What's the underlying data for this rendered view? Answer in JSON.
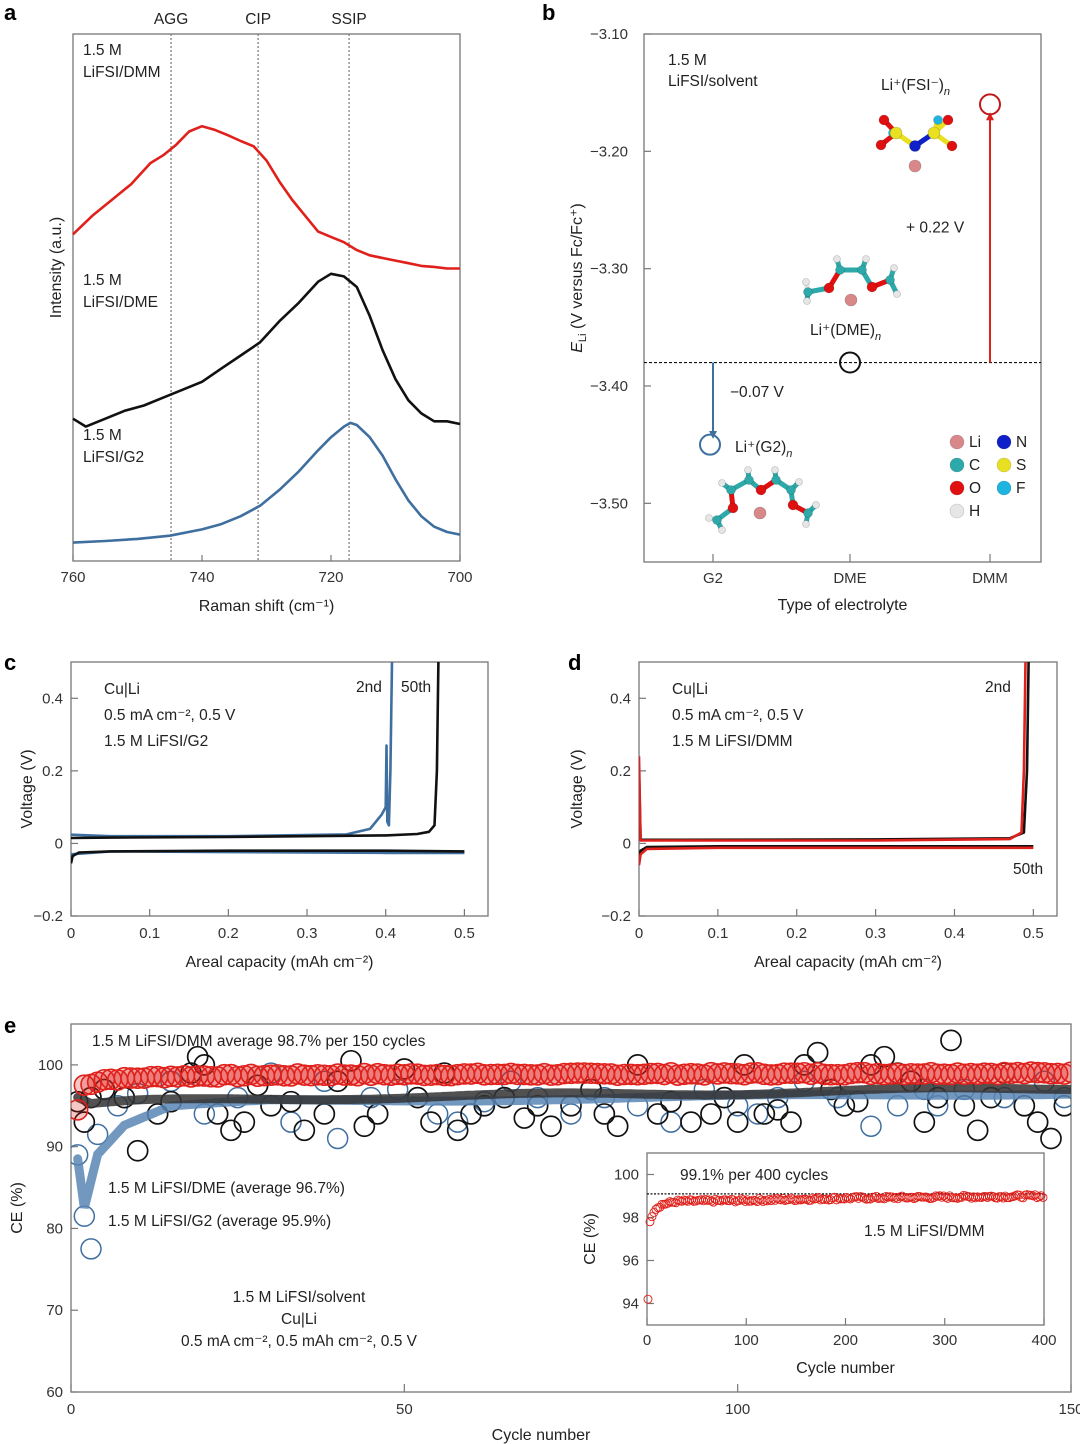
{
  "figure": {
    "panels": [
      "a",
      "b",
      "c",
      "d",
      "e"
    ]
  },
  "chart_data": [
    {
      "id": "a",
      "type": "line",
      "title": "",
      "xlabel": "Raman shift (cm⁻¹)",
      "ylabel": "Intensity (a.u.)",
      "xlim": [
        760,
        700
      ],
      "x_ticks": [
        "760",
        "740",
        "720",
        "700"
      ],
      "reference_lines": [
        {
          "label": "AGG",
          "x": 744.8
        },
        {
          "label": "CIP",
          "x": 731.3
        },
        {
          "label": "SSIP",
          "x": 717.2
        }
      ],
      "series": [
        {
          "name": "1.5 M LiFSI/DMM",
          "label_lines": [
            "1.5 M",
            "LiFSI/DMM"
          ],
          "color": "#e0201b",
          "x": [
            760,
            757,
            754,
            751,
            748,
            746,
            744,
            742,
            740,
            738,
            736,
            734,
            732,
            730,
            728,
            726,
            724,
            722,
            720,
            718,
            716,
            714,
            712,
            710,
            708,
            706,
            704,
            702,
            700
          ],
          "y": [
            0.62,
            0.655,
            0.685,
            0.715,
            0.755,
            0.77,
            0.79,
            0.815,
            0.825,
            0.818,
            0.808,
            0.797,
            0.787,
            0.76,
            0.72,
            0.685,
            0.655,
            0.625,
            0.615,
            0.605,
            0.59,
            0.58,
            0.575,
            0.57,
            0.565,
            0.56,
            0.558,
            0.555,
            0.555
          ]
        },
        {
          "name": "1.5 M LiFSI/DME",
          "label_lines": [
            "1.5 M",
            "LiFSI/DME"
          ],
          "color": "#111111",
          "x": [
            760,
            758,
            755,
            752,
            749,
            746,
            743,
            740,
            737,
            734,
            731,
            728,
            725,
            722,
            720,
            718,
            716,
            714,
            712,
            710,
            708,
            706,
            704,
            702,
            700
          ],
          "y": [
            0.27,
            0.255,
            0.27,
            0.285,
            0.295,
            0.31,
            0.325,
            0.34,
            0.365,
            0.39,
            0.415,
            0.455,
            0.49,
            0.53,
            0.545,
            0.54,
            0.52,
            0.465,
            0.4,
            0.345,
            0.305,
            0.28,
            0.265,
            0.265,
            0.26
          ]
        },
        {
          "name": "1.5 M LiFSI/G2",
          "label_lines": [
            "1.5 M",
            "LiFSI/G2"
          ],
          "color": "#3f6f9f",
          "x": [
            760,
            755,
            750,
            745,
            740,
            737,
            734,
            731,
            728,
            725,
            722,
            720,
            718,
            717,
            716,
            714,
            712,
            710,
            708,
            706,
            704,
            702,
            700
          ],
          "y": [
            0.035,
            0.038,
            0.042,
            0.048,
            0.06,
            0.07,
            0.085,
            0.105,
            0.135,
            0.17,
            0.21,
            0.235,
            0.255,
            0.262,
            0.258,
            0.235,
            0.2,
            0.155,
            0.115,
            0.085,
            0.065,
            0.055,
            0.05
          ]
        }
      ]
    },
    {
      "id": "b",
      "type": "scatter",
      "title": "",
      "xlabel": "Type of electrolyte",
      "ylabel_main": "E",
      "ylabel_sub": "Li",
      "ylabel_rest": " (V versus Fc/Fc⁺)",
      "ylim": [
        -3.55,
        -3.1
      ],
      "y_ticks": [
        "−3.10",
        "−3.20",
        "−3.30",
        "−3.40",
        "−3.50"
      ],
      "y_tick_values": [
        -3.1,
        -3.2,
        -3.3,
        -3.4,
        -3.5
      ],
      "categories": [
        "G2",
        "DME",
        "DMM"
      ],
      "values": [
        -3.45,
        -3.38,
        -3.16
      ],
      "colors": [
        "#3f6f9f",
        "#111111",
        "#c0191a"
      ],
      "species_labels": [
        "Li⁺(G2)",
        "Li⁺(DME)",
        "Li⁺(FSI⁻)"
      ],
      "species_subscript": "n",
      "reference_level": -3.38,
      "annotations": [
        {
          "text": "−0.07 V",
          "from": -3.38,
          "to": -3.44,
          "category": "G2"
        },
        {
          "text": "+ 0.22 V",
          "from": -3.38,
          "to": -3.165,
          "category": "DMM"
        }
      ],
      "inset_text": [
        "1.5 M",
        "LiFSI/solvent"
      ],
      "atom_legend": [
        {
          "symbol": "Li",
          "color": "#d9888a"
        },
        {
          "symbol": "C",
          "color": "#2ea9aa"
        },
        {
          "symbol": "O",
          "color": "#e01010"
        },
        {
          "symbol": "H",
          "color": "#e6e6e6"
        },
        {
          "symbol": "N",
          "color": "#1020c8"
        },
        {
          "symbol": "S",
          "color": "#e8e020"
        },
        {
          "symbol": "F",
          "color": "#1eb4e0"
        }
      ]
    },
    {
      "id": "c",
      "type": "line",
      "xlabel": "Areal capacity (mAh cm⁻²)",
      "ylabel": "Voltage (V)",
      "xlim": [
        0,
        0.53
      ],
      "ylim": [
        -0.2,
        0.5
      ],
      "x_ticks": [
        "0",
        "0.1",
        "0.2",
        "0.3",
        "0.4",
        "0.5"
      ],
      "y_ticks": [
        "−0.2",
        "0",
        "0.2",
        "0.4"
      ],
      "annotation_lines": [
        "Cu|Li",
        "0.5 mA cm⁻², 0.5 V",
        "1.5 M LiFSI/G2"
      ],
      "curve_labels": [
        "2nd",
        "50th"
      ],
      "series": [
        {
          "name": "2nd",
          "color": "#111111",
          "x": [
            0,
            0.002,
            0.01,
            0.05,
            0.2,
            0.4,
            0.5
          ],
          "y": [
            -0.055,
            -0.035,
            -0.025,
            -0.022,
            -0.02,
            -0.02,
            -0.022
          ],
          "x2": [
            0,
            0.05,
            0.2,
            0.4,
            0.44,
            0.455,
            0.462,
            0.465,
            0.467
          ],
          "y2": [
            0.015,
            0.016,
            0.018,
            0.022,
            0.026,
            0.032,
            0.05,
            0.2,
            0.5
          ]
        },
        {
          "name": "50th",
          "color": "#3f6f9f",
          "x": [
            0,
            0.05,
            0.2,
            0.4,
            0.5
          ],
          "y": [
            -0.03,
            -0.022,
            -0.024,
            -0.026,
            -0.026
          ],
          "x2": [
            0,
            0.05,
            0.2,
            0.35,
            0.38,
            0.395,
            0.4,
            0.401,
            0.402,
            0.404,
            0.406,
            0.408
          ],
          "y2": [
            0.024,
            0.02,
            0.02,
            0.025,
            0.04,
            0.08,
            0.1,
            0.27,
            0.06,
            0.05,
            0.2,
            0.5
          ]
        }
      ]
    },
    {
      "id": "d",
      "type": "line",
      "xlabel": "Areal capacity (mAh cm⁻²)",
      "ylabel": "Voltage (V)",
      "xlim": [
        0,
        0.53
      ],
      "ylim": [
        -0.2,
        0.5
      ],
      "x_ticks": [
        "0",
        "0.1",
        "0.2",
        "0.3",
        "0.4",
        "0.5"
      ],
      "y_ticks": [
        "−0.2",
        "0",
        "0.2",
        "0.4"
      ],
      "annotation_lines": [
        "Cu|Li",
        "0.5 mA cm⁻², 0.5 V",
        "1.5 M LiFSI/DMM"
      ],
      "curve_labels": [
        "2nd",
        "50th"
      ],
      "series": [
        {
          "name": "2nd",
          "color": "#e0201b",
          "x": [
            0,
            0.002,
            0.01,
            0.1,
            0.3,
            0.5
          ],
          "y": [
            -0.06,
            -0.03,
            -0.015,
            -0.012,
            -0.012,
            -0.012
          ],
          "x2": [
            0,
            0.0005,
            0.002,
            0.05,
            0.3,
            0.47,
            0.485,
            0.488,
            0.49
          ],
          "y2": [
            0.24,
            0.18,
            0.008,
            0.008,
            0.008,
            0.012,
            0.03,
            0.2,
            0.5
          ]
        },
        {
          "name": "50th",
          "color": "#111111",
          "x": [
            0,
            0.002,
            0.01,
            0.1,
            0.3,
            0.5
          ],
          "y": [
            -0.04,
            -0.02,
            -0.01,
            -0.008,
            -0.008,
            -0.008
          ],
          "x2": [
            0,
            0.002,
            0.05,
            0.3,
            0.47,
            0.488,
            0.492,
            0.494
          ],
          "y2": [
            0.2,
            0.01,
            0.01,
            0.011,
            0.014,
            0.03,
            0.2,
            0.5
          ]
        }
      ]
    },
    {
      "id": "e",
      "type": "scatter",
      "xlabel": "Cycle number",
      "ylabel": "CE (%)",
      "xlim": [
        0,
        150
      ],
      "ylim": [
        60,
        105
      ],
      "x_ticks": [
        "0",
        "50",
        "100",
        "150"
      ],
      "y_ticks": [
        "60",
        "70",
        "80",
        "90",
        "100"
      ],
      "annotations": [
        "1.5 M LiFSI/DMM average 98.7% per 150 cycles",
        "1.5 M LiFSI/DME (average 96.7%)",
        "1.5 M LiFSI/G2 (average 95.9%)"
      ],
      "condition_lines": [
        "1.5 M LiFSI/solvent",
        "Cu|Li",
        "0.5 mA cm⁻², 0.5 mAh cm⁻², 0.5 V"
      ],
      "series": [
        {
          "name": "1.5 M LiFSI/DMM",
          "average": 98.7,
          "color": "#e0201b",
          "trend": [
            [
              1,
              94.5
            ],
            [
              2,
              97.5
            ],
            [
              5,
              98.2
            ],
            [
              15,
              98.6
            ],
            [
              40,
              98.8
            ],
            [
              150,
              99.0
            ]
          ]
        },
        {
          "name": "1.5 M LiFSI/DME",
          "average": 96.7,
          "color": "#333333",
          "trend": [
            [
              1,
              96.0
            ],
            [
              3,
              95.2
            ],
            [
              10,
              95.5
            ],
            [
              40,
              96.0
            ],
            [
              100,
              96.6
            ],
            [
              150,
              97.2
            ]
          ]
        },
        {
          "name": "1.5 M LiFSI/G2",
          "average": 95.9,
          "color": "#5a86b5",
          "trend": [
            [
              1,
              88.5
            ],
            [
              2,
              82.5
            ],
            [
              4,
              89.0
            ],
            [
              8,
              92.5
            ],
            [
              15,
              94.8
            ],
            [
              30,
              95.6
            ],
            [
              80,
              95.9
            ],
            [
              150,
              96.6
            ]
          ]
        }
      ],
      "dme_scatter_sample": [
        [
          1,
          95.5
        ],
        [
          2,
          93.0
        ],
        [
          3,
          96
        ],
        [
          5,
          97
        ],
        [
          8,
          96
        ],
        [
          10,
          89.5
        ],
        [
          13,
          94
        ],
        [
          15,
          95.5
        ],
        [
          18,
          99
        ],
        [
          19,
          101
        ],
        [
          20,
          100
        ],
        [
          22,
          94
        ],
        [
          24,
          92
        ],
        [
          26,
          93
        ],
        [
          28,
          97.5
        ],
        [
          30,
          95
        ],
        [
          33,
          95.5
        ],
        [
          35,
          92
        ],
        [
          38,
          94
        ],
        [
          40,
          98
        ],
        [
          42,
          100.5
        ],
        [
          44,
          92.5
        ],
        [
          46,
          94
        ],
        [
          50,
          99.5
        ],
        [
          52,
          96
        ],
        [
          54,
          93
        ],
        [
          56,
          99
        ],
        [
          58,
          92
        ],
        [
          60,
          94
        ],
        [
          62,
          95
        ],
        [
          65,
          96
        ],
        [
          68,
          93.5
        ],
        [
          70,
          95
        ],
        [
          72,
          92.5
        ],
        [
          75,
          95
        ],
        [
          78,
          97
        ],
        [
          80,
          94
        ],
        [
          82,
          92.5
        ],
        [
          85,
          100
        ],
        [
          88,
          94
        ],
        [
          90,
          95.5
        ],
        [
          93,
          93
        ],
        [
          96,
          94
        ],
        [
          98,
          96
        ],
        [
          100,
          93
        ],
        [
          101,
          100
        ],
        [
          104,
          94
        ],
        [
          106,
          94.5
        ],
        [
          108,
          93
        ],
        [
          110,
          100
        ],
        [
          112,
          101.5
        ],
        [
          114,
          97
        ],
        [
          116,
          95
        ],
        [
          118,
          95.5
        ],
        [
          120,
          100
        ],
        [
          122,
          101
        ],
        [
          124,
          99
        ],
        [
          126,
          98
        ],
        [
          128,
          93
        ],
        [
          130,
          96
        ],
        [
          132,
          103
        ],
        [
          134,
          95
        ],
        [
          136,
          92
        ],
        [
          138,
          96
        ],
        [
          140,
          99
        ],
        [
          143,
          95
        ],
        [
          145,
          93
        ],
        [
          147,
          91
        ],
        [
          149,
          95
        ]
      ],
      "g2_scatter_sample": [
        [
          1,
          89
        ],
        [
          2,
          81.5
        ],
        [
          3,
          77.5
        ],
        [
          4,
          91.5
        ],
        [
          7,
          95
        ],
        [
          10,
          96.5
        ],
        [
          15,
          98
        ],
        [
          20,
          94
        ],
        [
          25,
          96
        ],
        [
          30,
          99
        ],
        [
          33,
          93
        ],
        [
          38,
          98
        ],
        [
          40,
          91
        ],
        [
          45,
          96
        ],
        [
          49,
          97
        ],
        [
          55,
          94
        ],
        [
          58,
          93
        ],
        [
          62,
          95.5
        ],
        [
          66,
          98
        ],
        [
          70,
          96
        ],
        [
          75,
          94
        ],
        [
          80,
          96
        ],
        [
          85,
          95
        ],
        [
          90,
          93
        ],
        [
          95,
          97
        ],
        [
          100,
          95
        ],
        [
          103,
          94
        ],
        [
          106,
          96
        ],
        [
          110,
          98
        ],
        [
          115,
          96
        ],
        [
          120,
          92.5
        ],
        [
          124,
          95
        ],
        [
          128,
          97
        ],
        [
          130,
          95
        ],
        [
          134,
          97
        ],
        [
          137,
          99
        ],
        [
          140,
          96
        ],
        [
          143,
          95
        ],
        [
          146,
          98
        ],
        [
          149,
          96
        ]
      ],
      "inset": {
        "type": "scatter",
        "xlabel": "Cycle number",
        "ylabel": "CE (%)",
        "xlim": [
          0,
          400
        ],
        "ylim": [
          93,
          101
        ],
        "x_ticks": [
          "0",
          "100",
          "200",
          "300",
          "400"
        ],
        "y_ticks": [
          "94",
          "96",
          "98",
          "100"
        ],
        "reference_line": 99.1,
        "annotation": "99.1% per 400 cycles",
        "series_label": "1.5 M LiFSI/DMM",
        "color": "#e0201b",
        "trend": [
          [
            1,
            94.2
          ],
          [
            2,
            97.6
          ],
          [
            4,
            98.0
          ],
          [
            8,
            98.4
          ],
          [
            15,
            98.6
          ],
          [
            30,
            98.75
          ],
          [
            100,
            98.8
          ],
          [
            200,
            98.9
          ],
          [
            400,
            99.0
          ]
        ]
      }
    }
  ]
}
